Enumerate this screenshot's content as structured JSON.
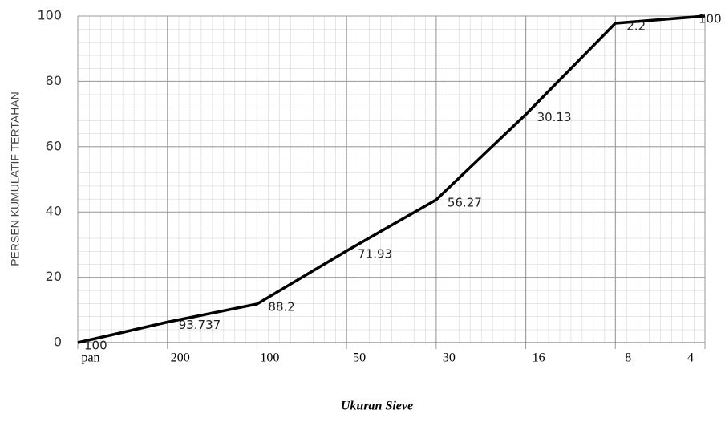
{
  "chart_data": {
    "type": "line",
    "x_label": "Ukuran Sieve",
    "y_label": "PERSEN KUMULATIF TERTAHAN",
    "categories": [
      "pan",
      "200",
      "100",
      "50",
      "30",
      "16",
      "8",
      "4"
    ],
    "series": [
      {
        "color": "#000000",
        "values": [
          0,
          6.263,
          11.8,
          28.07,
          43.73,
          69.87,
          97.8,
          100
        ]
      }
    ],
    "annotations": [
      "100",
      "93.737",
      "88.2",
      "71.93",
      "56.27",
      "30.13",
      "2.2",
      "100"
    ],
    "ylim": [
      0,
      100
    ],
    "yticks": [
      0,
      20,
      40,
      60,
      80,
      100
    ],
    "grid": true
  }
}
